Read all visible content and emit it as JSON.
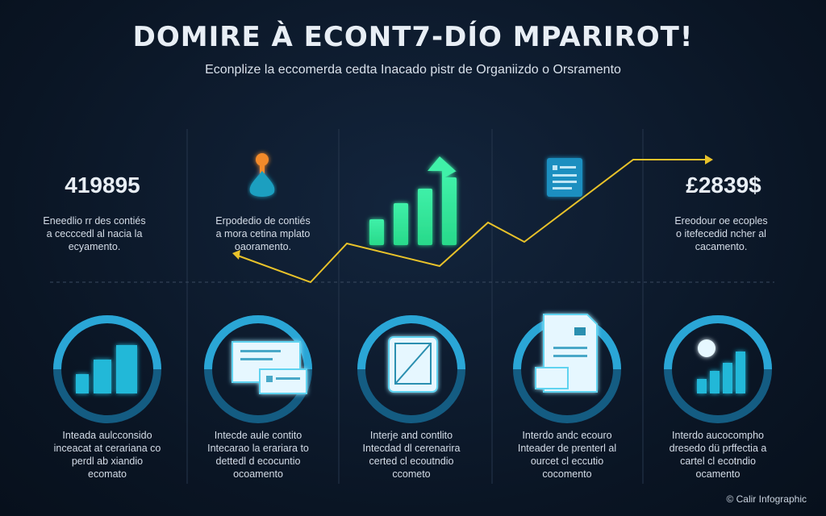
{
  "header": {
    "title": "DOMIRE À ECONT7-DÍO MPARIROT!",
    "subtitle": "Econplize la eccomerda cedta Inacado pistr de Organiizdo o Orsramento"
  },
  "top": [
    {
      "value": "419895",
      "lines": [
        "Eneedlio rr des contiés",
        "a cecccedl al nacia la",
        "ecyamento."
      ]
    },
    {
      "lines": [
        "Erpodedio de contiés",
        "a mora cetina mplato",
        "oaoramento."
      ]
    },
    {
      "value": "£2839$",
      "lines": [
        "Ereodour oe ecoples",
        "o itefecedid ncher al",
        "cacamento."
      ]
    }
  ],
  "bottom": [
    {
      "lines": [
        "Inteada aulcconsido",
        "inceacat at cerariana co",
        "perdl ab xiandio",
        "ecomato"
      ]
    },
    {
      "lines": [
        "Intecde aule contito",
        "Intecarao la erariara to",
        "dettedl d ecocuntio",
        "ocoamento"
      ]
    },
    {
      "lines": [
        "Interje and contlito",
        "Intecdad dl cerenarira",
        "certed cl ecoutndio",
        "ccometo"
      ]
    },
    {
      "lines": [
        "Interdo andc ecouro",
        "Inteader de prenterl al",
        "ourcet cl eccutio",
        "cocomento"
      ]
    },
    {
      "lines": [
        "Interdo aucocompho",
        "dresedo dü prffectia a",
        "cartel cl ecotndio",
        "ocamento"
      ]
    }
  ],
  "footer": "© Calir Infographic"
}
